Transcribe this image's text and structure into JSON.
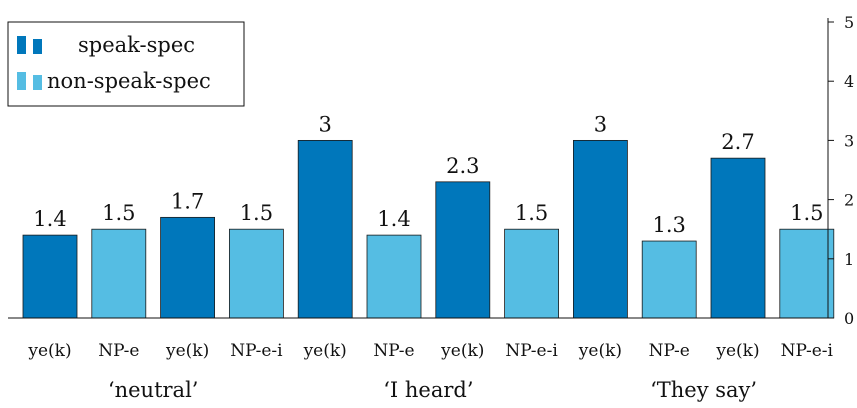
{
  "chart_data": {
    "type": "bar",
    "categories": [
      "ye(k)",
      "NP-e",
      "ye(k)",
      "NP-e-i",
      "ye(k)",
      "NP-e",
      "ye(k)",
      "NP-e-i",
      "ye(k)",
      "NP-e",
      "ye(k)",
      "NP-e-i"
    ],
    "groups": [
      {
        "label": "‘neutral’",
        "categories": [
          0,
          1,
          2,
          3
        ]
      },
      {
        "label": "‘I heard’",
        "categories": [
          4,
          5,
          6,
          7
        ]
      },
      {
        "label": "‘They say’",
        "categories": [
          8,
          9,
          10,
          11
        ]
      }
    ],
    "series": [
      {
        "name": "speak-spec",
        "color": "#0077bb",
        "values": [
          1.4,
          null,
          1.7,
          null,
          3,
          null,
          2.3,
          null,
          3,
          null,
          2.7,
          null
        ]
      },
      {
        "name": "non-speak-spec",
        "color": "#55bde3",
        "values": [
          null,
          1.5,
          null,
          1.5,
          null,
          1.4,
          null,
          1.5,
          null,
          1.3,
          null,
          1.5
        ]
      }
    ],
    "data_labels": [
      "1.4",
      "1.5",
      "1.7",
      "1.5",
      "3",
      "1.4",
      "2.3",
      "1.5",
      "3",
      "1.3",
      "2.7",
      "1.5"
    ],
    "y_ticks": [
      0,
      1,
      2,
      3,
      4,
      5
    ],
    "ylim": [
      0,
      5
    ],
    "y_axis_side": "right",
    "legend_position": "top-left",
    "grid": false,
    "title": "",
    "xlabel": "",
    "ylabel": ""
  }
}
